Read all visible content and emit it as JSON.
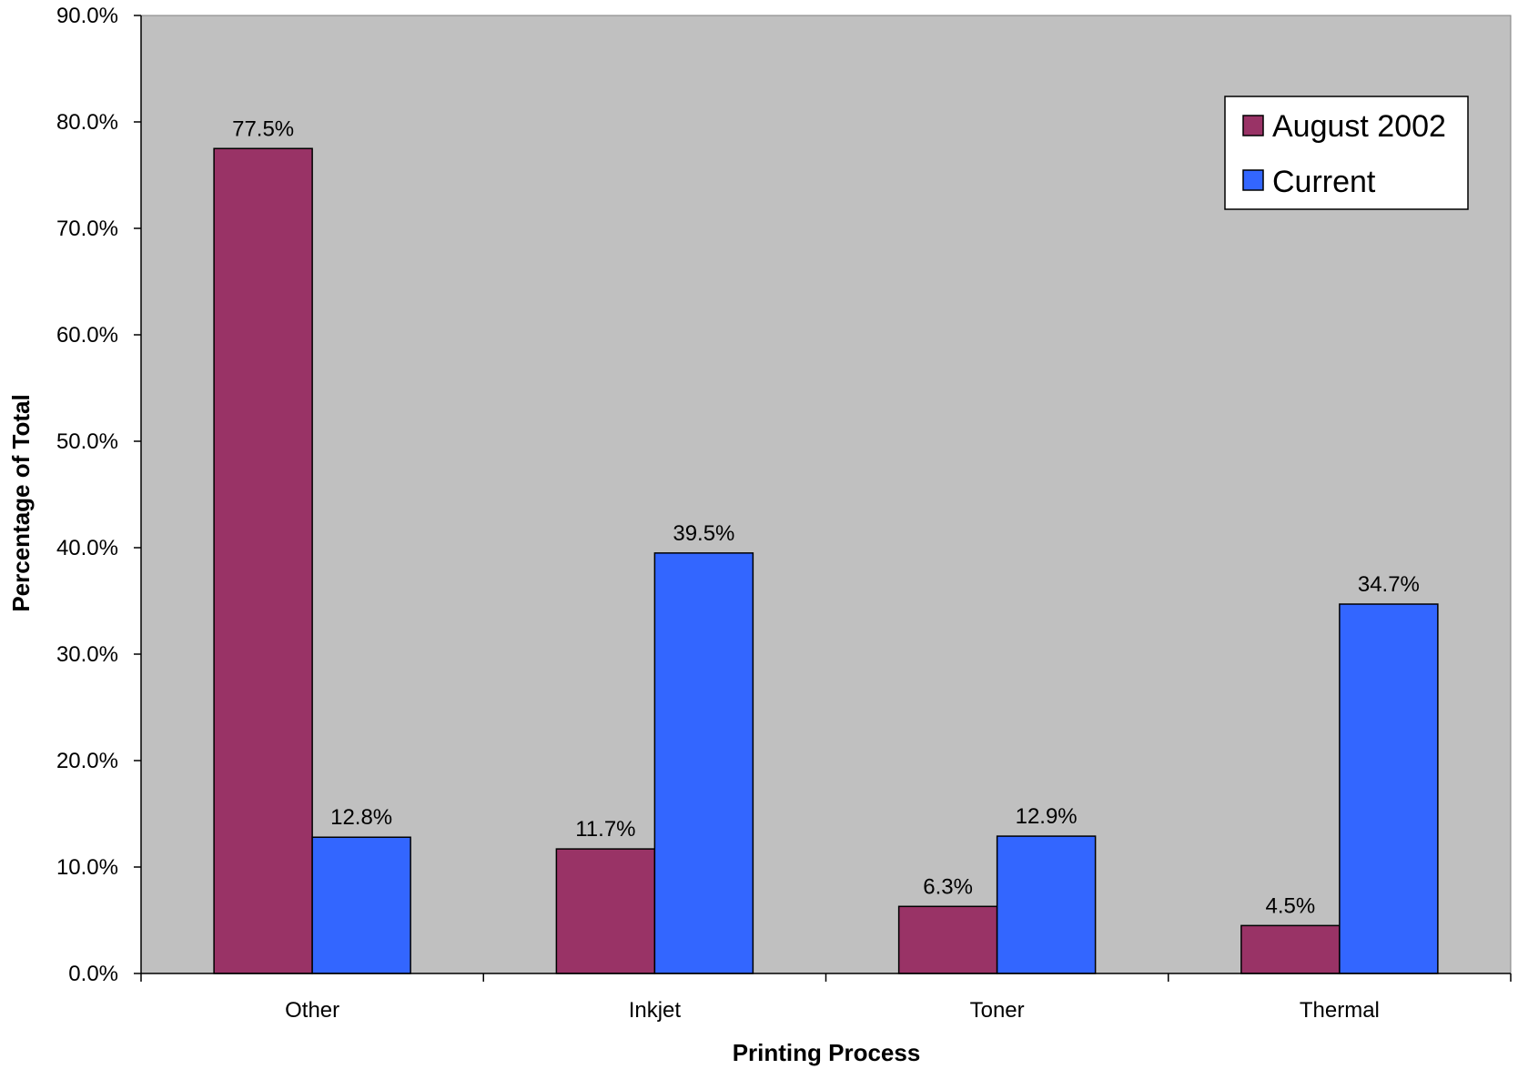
{
  "chart_data": {
    "type": "bar",
    "categories": [
      "Other",
      "Inkjet",
      "Toner",
      "Thermal"
    ],
    "series": [
      {
        "name": "August 2002",
        "values": [
          77.5,
          11.7,
          6.3,
          4.5
        ],
        "labels": [
          "77.5%",
          "11.7%",
          "6.3%",
          "4.5%"
        ],
        "color": "#993366"
      },
      {
        "name": "Current",
        "values": [
          12.8,
          39.5,
          12.9,
          34.7
        ],
        "labels": [
          "12.8%",
          "39.5%",
          "12.9%",
          "34.7%"
        ],
        "color": "#3366FF"
      }
    ],
    "xlabel": "Printing Process",
    "ylabel": "Percentage of Total",
    "ylim": [
      0,
      90
    ],
    "yticks": [
      0,
      10,
      20,
      30,
      40,
      50,
      60,
      70,
      80,
      90
    ],
    "ytick_labels": [
      "0.0%",
      "10.0%",
      "20.0%",
      "30.0%",
      "40.0%",
      "50.0%",
      "60.0%",
      "70.0%",
      "80.0%",
      "90.0%"
    ],
    "plot_background": "#C0C0C0",
    "grid": false,
    "legend_position": "top-right"
  }
}
